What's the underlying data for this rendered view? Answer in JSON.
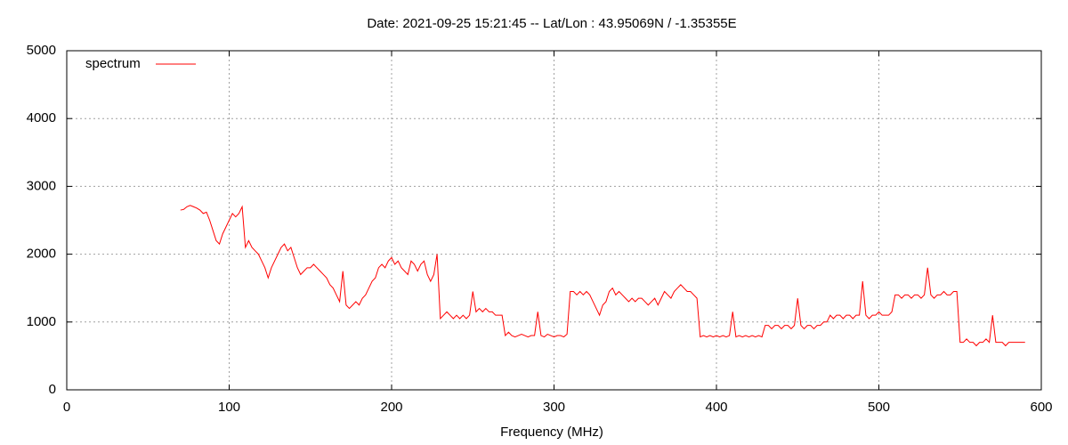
{
  "chart_data": {
    "type": "line",
    "title": "Date: 2021-09-25 15:21:45  --  Lat/Lon : 43.95069N / -1.35355E",
    "xlabel": "Frequency (MHz)",
    "xlim": [
      0,
      600
    ],
    "xticks": [
      0,
      100,
      200,
      300,
      400,
      500,
      600
    ],
    "ylim": [
      0,
      5000
    ],
    "yticks": [
      0,
      1000,
      2000,
      3000,
      4000,
      5000
    ],
    "grid": true,
    "legend": "upper left",
    "x": [
      70,
      72,
      74,
      76,
      78,
      80,
      82,
      84,
      86,
      88,
      90,
      92,
      94,
      96,
      98,
      100,
      102,
      104,
      106,
      108,
      110,
      112,
      114,
      116,
      118,
      120,
      122,
      124,
      126,
      128,
      130,
      132,
      134,
      136,
      138,
      140,
      142,
      144,
      146,
      148,
      150,
      152,
      154,
      156,
      158,
      160,
      162,
      164,
      166,
      168,
      170,
      172,
      174,
      176,
      178,
      180,
      182,
      184,
      186,
      188,
      190,
      192,
      194,
      196,
      198,
      200,
      202,
      204,
      206,
      208,
      210,
      212,
      214,
      216,
      218,
      220,
      222,
      224,
      226,
      228,
      230,
      232,
      234,
      236,
      238,
      240,
      242,
      244,
      246,
      248,
      250,
      252,
      254,
      256,
      258,
      260,
      262,
      264,
      266,
      268,
      270,
      272,
      274,
      276,
      278,
      280,
      282,
      284,
      286,
      288,
      290,
      292,
      294,
      296,
      298,
      300,
      302,
      304,
      306,
      308,
      310,
      312,
      314,
      316,
      318,
      320,
      322,
      324,
      326,
      328,
      330,
      332,
      334,
      336,
      338,
      340,
      342,
      344,
      346,
      348,
      350,
      352,
      354,
      356,
      358,
      360,
      362,
      364,
      366,
      368,
      370,
      372,
      374,
      376,
      378,
      380,
      382,
      384,
      386,
      388,
      390,
      392,
      394,
      396,
      398,
      400,
      402,
      404,
      406,
      408,
      410,
      412,
      414,
      416,
      418,
      420,
      422,
      424,
      426,
      428,
      430,
      432,
      434,
      436,
      438,
      440,
      442,
      444,
      446,
      448,
      450,
      452,
      454,
      456,
      458,
      460,
      462,
      464,
      466,
      468,
      470,
      472,
      474,
      476,
      478,
      480,
      482,
      484,
      486,
      488,
      490,
      492,
      494,
      496,
      498,
      500,
      502,
      504,
      506,
      508,
      510,
      512,
      514,
      516,
      518,
      520,
      522,
      524,
      526,
      528,
      530,
      532,
      534,
      536,
      538,
      540,
      542,
      544,
      546,
      548,
      550,
      552,
      554,
      556,
      558,
      560,
      562,
      564,
      566,
      568,
      570,
      572,
      574,
      576,
      578,
      580,
      582,
      584,
      586,
      588,
      590
    ],
    "series": [
      {
        "name": "spectrum",
        "color": "#ff0000",
        "values": [
          2650,
          2660,
          2700,
          2720,
          2700,
          2680,
          2650,
          2600,
          2620,
          2500,
          2350,
          2200,
          2150,
          2300,
          2400,
          2500,
          2600,
          2550,
          2600,
          2700,
          2100,
          2200,
          2100,
          2050,
          2000,
          1900,
          1800,
          1650,
          1800,
          1900,
          2000,
          2100,
          2150,
          2050,
          2100,
          1950,
          1800,
          1700,
          1750,
          1800,
          1800,
          1850,
          1800,
          1750,
          1700,
          1650,
          1550,
          1500,
          1400,
          1300,
          1750,
          1250,
          1200,
          1250,
          1300,
          1250,
          1350,
          1400,
          1500,
          1600,
          1650,
          1800,
          1850,
          1800,
          1900,
          1950,
          1850,
          1900,
          1800,
          1750,
          1700,
          1900,
          1850,
          1750,
          1850,
          1900,
          1700,
          1600,
          1700,
          2000,
          1050,
          1100,
          1150,
          1100,
          1050,
          1100,
          1050,
          1100,
          1050,
          1100,
          1450,
          1150,
          1200,
          1150,
          1200,
          1150,
          1150,
          1100,
          1100,
          1100,
          800,
          850,
          800,
          780,
          800,
          820,
          800,
          780,
          800,
          800,
          1150,
          800,
          780,
          820,
          800,
          780,
          800,
          800,
          780,
          820,
          1450,
          1450,
          1400,
          1450,
          1400,
          1450,
          1400,
          1300,
          1200,
          1100,
          1250,
          1300,
          1450,
          1500,
          1400,
          1450,
          1400,
          1350,
          1300,
          1350,
          1300,
          1350,
          1350,
          1300,
          1250,
          1300,
          1350,
          1250,
          1350,
          1450,
          1400,
          1350,
          1450,
          1500,
          1550,
          1500,
          1450,
          1450,
          1400,
          1350,
          780,
          800,
          780,
          800,
          780,
          800,
          780,
          800,
          780,
          800,
          1150,
          780,
          800,
          780,
          800,
          780,
          800,
          780,
          800,
          780,
          950,
          950,
          900,
          950,
          950,
          900,
          950,
          950,
          900,
          950,
          1350,
          950,
          900,
          950,
          950,
          900,
          950,
          950,
          1000,
          1000,
          1100,
          1050,
          1100,
          1100,
          1050,
          1100,
          1100,
          1050,
          1100,
          1100,
          1600,
          1100,
          1050,
          1100,
          1100,
          1150,
          1100,
          1100,
          1100,
          1150,
          1400,
          1400,
          1350,
          1400,
          1400,
          1350,
          1400,
          1400,
          1350,
          1400,
          1800,
          1400,
          1350,
          1400,
          1400,
          1450,
          1400,
          1400,
          1450,
          1450,
          700,
          700,
          750,
          700,
          700,
          650,
          700,
          700,
          750,
          700,
          1100,
          700,
          700,
          700,
          650,
          700,
          700,
          700,
          700,
          700,
          700
        ]
      }
    ]
  }
}
